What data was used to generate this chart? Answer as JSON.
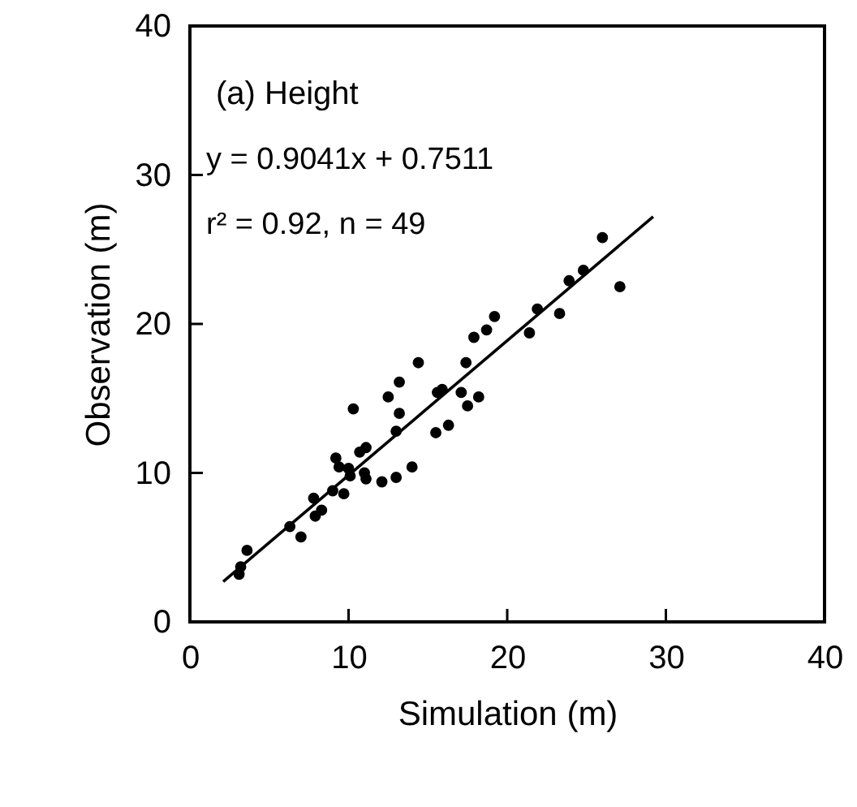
{
  "chart_data": {
    "type": "scatter",
    "xlabel": "Simulation (m)",
    "ylabel": "Observation (m)",
    "annotations": [
      "(a) Height",
      "y = 0.9041x + 0.7511",
      "r² = 0.92, n = 49"
    ],
    "xlim": [
      0,
      40
    ],
    "ylim": [
      0,
      40
    ],
    "xticks": [
      0,
      10,
      20,
      30,
      40
    ],
    "yticks": [
      0,
      10,
      20,
      30,
      40
    ],
    "grid": false,
    "marker": "circle",
    "series": [
      {
        "color": "#000000",
        "x": [
          3.1,
          3.2,
          3.6,
          6.3,
          7.0,
          7.8,
          7.9,
          8.3,
          9.0,
          9.7,
          9.2,
          9.4,
          10.0,
          10.1,
          10.3,
          10.7,
          11.1,
          11.0,
          11.1,
          12.1,
          13.0,
          14.0,
          13.0,
          13.2,
          12.5,
          13.2,
          14.4,
          15.5,
          16.3,
          15.6,
          15.9,
          17.1,
          17.5,
          18.2,
          17.4,
          17.9,
          18.7,
          19.2,
          21.4,
          21.9,
          23.3,
          23.9,
          24.8,
          26.0,
          27.1
        ],
        "values": [
          3.2,
          3.7,
          4.8,
          6.4,
          5.7,
          8.3,
          7.1,
          7.5,
          8.8,
          8.6,
          11.0,
          10.4,
          10.3,
          9.8,
          14.3,
          11.4,
          11.7,
          10.0,
          9.6,
          9.4,
          9.7,
          10.4,
          12.8,
          14.0,
          15.1,
          16.1,
          17.4,
          12.7,
          13.2,
          15.4,
          15.6,
          15.4,
          14.5,
          15.1,
          17.4,
          19.1,
          19.6,
          20.5,
          19.4,
          21.0,
          20.7,
          22.9,
          23.6,
          25.8,
          22.5
        ]
      },
      {
        "type": "line",
        "marker": "none",
        "line_style": "solid",
        "color": "#000000",
        "x": [
          2.1,
          29.2
        ],
        "values": [
          2.7,
          27.2
        ]
      }
    ]
  }
}
